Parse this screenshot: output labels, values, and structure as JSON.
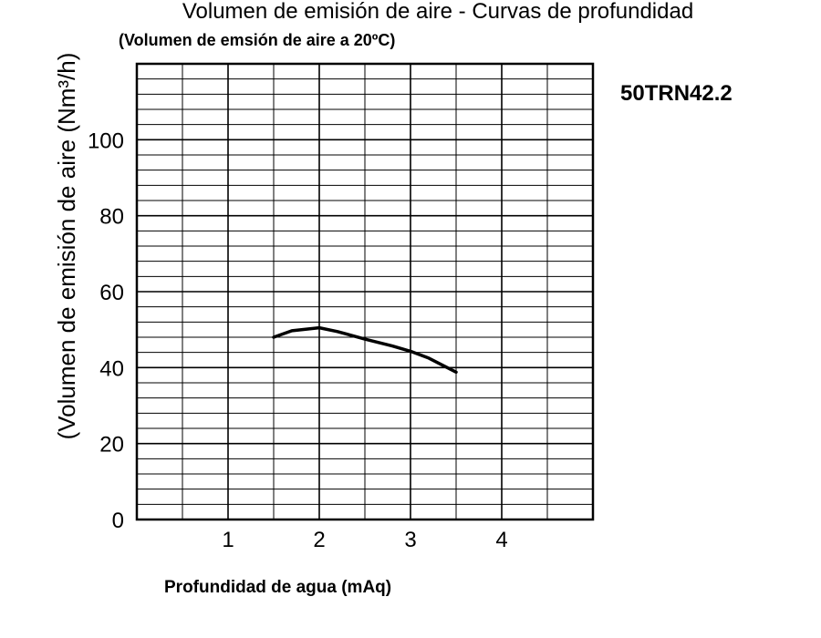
{
  "chart_data": {
    "type": "line",
    "title": "Volumen de emisión de aire - Curvas de profundidad",
    "subtitle": "(Volumen de emsión de aire a 20ºC)",
    "model": "50TRN42.2",
    "xlabel": "Profundidad de agua (mAq)",
    "ylabel": "(Volumen de emisión de aire (Nm³/h)",
    "xlim": [
      0,
      5
    ],
    "ylim": [
      0,
      120
    ],
    "x_ticks": [
      "1",
      "2",
      "3",
      "4"
    ],
    "y_ticks": [
      "0",
      "20",
      "40",
      "60",
      "80",
      "100"
    ],
    "grid": true,
    "series": [
      {
        "x": [
          1.5,
          1.7,
          2.0,
          2.2,
          2.5,
          2.8,
          3.0,
          3.2,
          3.5
        ],
        "values": [
          48,
          49.7,
          50.5,
          49.5,
          47.5,
          45.7,
          44.3,
          42.5,
          38.8
        ]
      }
    ]
  }
}
